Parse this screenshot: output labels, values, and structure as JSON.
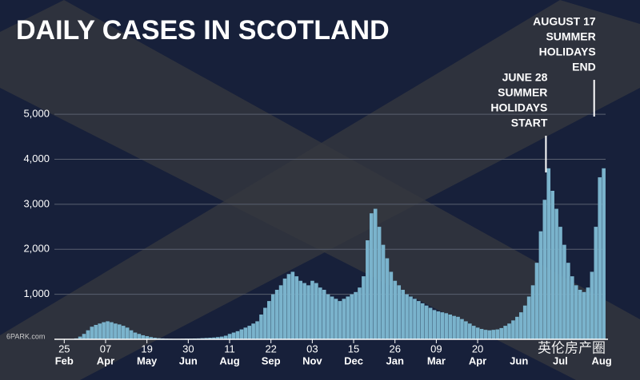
{
  "chart_data": {
    "type": "bar",
    "title": "DAILY CASES IN SCOTLAND",
    "x": [
      0,
      4,
      8,
      12,
      16,
      20,
      24,
      28,
      32,
      36,
      40,
      44,
      48,
      52,
      56,
      60,
      64,
      68,
      72,
      76,
      80,
      84,
      88,
      92,
      96,
      100,
      104,
      108,
      112,
      116,
      120,
      124,
      128,
      132,
      136,
      140,
      144,
      148,
      152,
      156,
      160,
      164,
      168,
      172,
      176,
      180,
      184,
      188,
      192,
      196,
      200,
      204,
      208,
      212,
      216,
      220,
      224,
      228,
      232,
      236,
      240,
      244,
      248,
      252,
      256,
      260,
      264,
      268,
      272,
      276,
      280,
      284,
      288,
      292,
      296,
      300,
      304,
      308,
      312,
      316,
      320,
      324,
      328,
      332,
      336,
      340,
      344,
      348,
      352,
      356,
      360,
      364,
      368,
      372,
      376,
      380,
      384,
      388,
      392,
      396,
      400,
      404,
      408,
      412,
      416,
      420,
      424,
      428,
      432,
      436,
      440,
      444,
      448,
      452,
      456,
      460,
      464,
      468,
      472,
      476,
      480,
      484,
      488,
      492,
      496,
      500,
      504,
      508,
      512,
      516,
      520,
      524,
      528,
      532,
      536,
      540,
      544,
      548
    ],
    "values": [
      0,
      0,
      5,
      20,
      60,
      120,
      200,
      280,
      320,
      350,
      380,
      400,
      380,
      350,
      330,
      300,
      260,
      200,
      150,
      120,
      90,
      70,
      50,
      35,
      25,
      20,
      15,
      12,
      10,
      10,
      12,
      15,
      15,
      18,
      20,
      25,
      30,
      35,
      40,
      50,
      60,
      80,
      120,
      150,
      180,
      220,
      260,
      300,
      350,
      400,
      550,
      700,
      850,
      1000,
      1100,
      1200,
      1350,
      1450,
      1500,
      1400,
      1300,
      1250,
      1200,
      1300,
      1250,
      1150,
      1100,
      1000,
      950,
      900,
      850,
      900,
      950,
      1000,
      1050,
      1150,
      1400,
      2200,
      2800,
      2900,
      2500,
      2100,
      1800,
      1500,
      1300,
      1200,
      1100,
      1000,
      950,
      900,
      850,
      800,
      750,
      700,
      650,
      620,
      600,
      580,
      550,
      520,
      500,
      450,
      400,
      350,
      300,
      260,
      230,
      210,
      200,
      210,
      220,
      250,
      300,
      350,
      420,
      500,
      600,
      750,
      950,
      1200,
      1700,
      2400,
      3100,
      3800,
      3300,
      2900,
      2500,
      2100,
      1700,
      1400,
      1200,
      1100,
      1050,
      1150,
      1500,
      2500,
      3600,
      3800
    ],
    "color": "#7ab3cc",
    "xlim": [
      -10,
      550
    ],
    "xticks": [
      {
        "value": 0,
        "label": "25"
      },
      {
        "value": 42,
        "label": "07"
      },
      {
        "value": 84,
        "label": "19"
      },
      {
        "value": 126,
        "label": "30"
      },
      {
        "value": 168,
        "label": "11"
      },
      {
        "value": 210,
        "label": "22"
      },
      {
        "value": 252,
        "label": "03"
      },
      {
        "value": 294,
        "label": "15"
      },
      {
        "value": 336,
        "label": "26"
      },
      {
        "value": 378,
        "label": "09"
      },
      {
        "value": 420,
        "label": "20"
      }
    ],
    "x_months": [
      "Feb",
      "Apr",
      "May",
      "Jun",
      "Aug",
      "Sep",
      "Nov",
      "Dec",
      "Jan",
      "Mar",
      "Apr",
      "Jun",
      "Jul",
      "Aug"
    ],
    "ylim": [
      0,
      5500
    ],
    "yticks": [
      {
        "value": 1000,
        "label": "1,000"
      },
      {
        "value": 2000,
        "label": "2,000"
      },
      {
        "value": 3000,
        "label": "3,000"
      },
      {
        "value": 4000,
        "label": "4,000"
      },
      {
        "value": 5000,
        "label": "5,000"
      }
    ],
    "grid": true,
    "annotations": [
      {
        "x": 491,
        "lines": [
          "JUNE 28",
          "SUMMER",
          "HOLIDAYS",
          "START"
        ]
      },
      {
        "x": 540,
        "lines": [
          "AUGUST 17",
          "SUMMER",
          "HOLIDAYS",
          "END"
        ]
      }
    ],
    "watermarks": [
      "6PARK.com",
      "英伦房产圈"
    ]
  }
}
